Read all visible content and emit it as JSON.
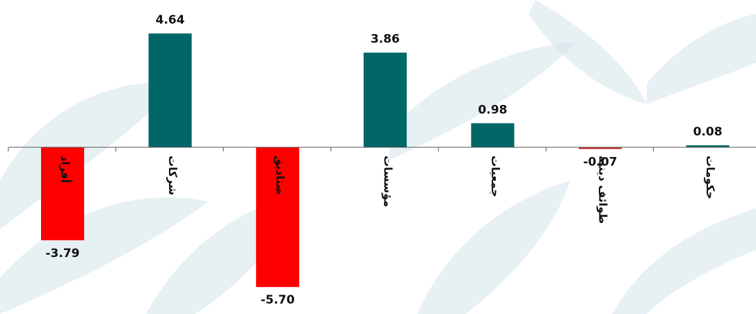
{
  "chart_data": {
    "type": "bar",
    "title": "",
    "xlabel": "",
    "ylabel": "",
    "categories": [
      "أفراد",
      "شركات",
      "صناديق",
      "مؤسسات",
      "جمعيات",
      "طوائف دينية",
      "حكومات"
    ],
    "values": [
      -3.79,
      4.64,
      -5.7,
      3.86,
      0.98,
      -0.07,
      0.08
    ],
    "value_labels": [
      "-3.79",
      "4.64",
      "-5.70",
      "3.86",
      "0.98",
      "-0.07",
      "0.08"
    ],
    "ylim": [
      -6.1,
      5.4
    ],
    "grid": false,
    "legend": "none",
    "colors": {
      "positive": "#006666",
      "negative": "#ff0000",
      "negative_small": "#cc2020",
      "axis": "#555555",
      "text": "#111111",
      "watermark": "#d4e4e9"
    }
  }
}
